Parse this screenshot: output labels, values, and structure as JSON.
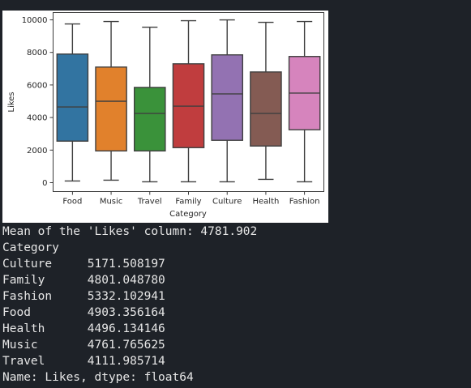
{
  "chart_data": {
    "type": "box",
    "xlabel": "Category",
    "ylabel": "Likes",
    "ylim": [
      -550,
      10450
    ],
    "yticks": [
      0,
      2000,
      4000,
      6000,
      8000,
      10000
    ],
    "categories": [
      "Food",
      "Music",
      "Travel",
      "Family",
      "Culture",
      "Health",
      "Fashion"
    ],
    "boxes": [
      {
        "category": "Food",
        "color": "#3274a1",
        "min": 100,
        "q1": 2550,
        "median": 4650,
        "q3": 7900,
        "max": 9750
      },
      {
        "category": "Music",
        "color": "#e1812c",
        "min": 150,
        "q1": 1950,
        "median": 5000,
        "q3": 7100,
        "max": 9900
      },
      {
        "category": "Travel",
        "color": "#3a923a",
        "min": 50,
        "q1": 1950,
        "median": 4250,
        "q3": 5850,
        "max": 9550
      },
      {
        "category": "Family",
        "color": "#c03d3e",
        "min": 50,
        "q1": 2150,
        "median": 4700,
        "q3": 7300,
        "max": 9950
      },
      {
        "category": "Culture",
        "color": "#9372b2",
        "min": 50,
        "q1": 2600,
        "median": 5450,
        "q3": 7850,
        "max": 10000
      },
      {
        "category": "Health",
        "color": "#845b53",
        "min": 200,
        "q1": 2250,
        "median": 4250,
        "q3": 6800,
        "max": 9850
      },
      {
        "category": "Fashion",
        "color": "#d684bd",
        "min": 50,
        "q1": 3250,
        "median": 5500,
        "q3": 7750,
        "max": 9900
      }
    ]
  },
  "console": {
    "lines": [
      "Mean of the 'Likes' column: 4781.902",
      "Category",
      "Culture     5171.508197",
      "Family      4801.048780",
      "Fashion     5332.102941",
      "Food        4903.356164",
      "Health      4496.134146",
      "Music       4761.765625",
      "Travel      4111.985714",
      "Name: Likes, dtype: float64"
    ]
  }
}
